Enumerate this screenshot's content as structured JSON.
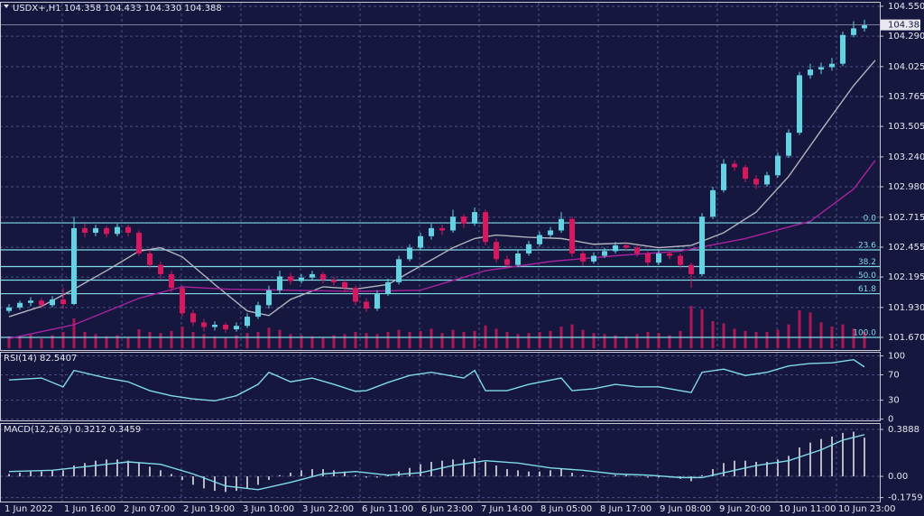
{
  "chart_data": [
    {
      "type": "candlestick",
      "title": "USDX+,H1 104.358 104.433 104.330 104.388",
      "ylim": [
        101.56,
        104.581
      ],
      "yticks": [
        {
          "value": 104.55,
          "label": "104.550"
        },
        {
          "value": 104.29,
          "label": "104.290"
        },
        104.025,
        103.765,
        103.505,
        {
          "value": 103.24,
          "label": "103.240"
        },
        {
          "value": 102.98,
          "label": "102.980"
        },
        102.715,
        102.455,
        102.195,
        {
          "value": 101.93,
          "label": "101.930"
        },
        {
          "value": 101.67,
          "label": "101.670"
        }
      ],
      "grid": true,
      "up_color": "#62d3e3",
      "down_color": "#d9175f",
      "x_labels": [
        "1 Jun 2022",
        "1 Jun 16:00",
        "2 Jun 07:00",
        "2 Jun 19:00",
        "3 Jun 10:00",
        "3 Jun 22:00",
        "6 Jun 11:00",
        "6 Jun 23:00",
        "7 Jun 14:00",
        "8 Jun 05:00",
        "8 Jun 17:00",
        "9 Jun 08:00",
        "9 Jun 20:00",
        "10 Jun 11:00",
        "10 Jun 23:00"
      ],
      "ohlc": [
        [
          101.9,
          101.96,
          101.88,
          101.93
        ],
        [
          101.93,
          101.99,
          101.91,
          101.97
        ],
        [
          101.97,
          102.02,
          101.94,
          101.99
        ],
        [
          101.99,
          102.01,
          101.92,
          101.95
        ],
        [
          101.95,
          102.03,
          101.93,
          102.0
        ],
        [
          102.0,
          102.1,
          101.92,
          101.96
        ],
        [
          101.96,
          102.72,
          101.95,
          102.62
        ],
        [
          102.62,
          102.66,
          102.54,
          102.58
        ],
        [
          102.58,
          102.65,
          102.55,
          102.62
        ],
        [
          102.62,
          102.64,
          102.54,
          102.57
        ],
        [
          102.57,
          102.66,
          102.55,
          102.63
        ],
        [
          102.63,
          102.65,
          102.55,
          102.58
        ],
        [
          102.58,
          102.6,
          102.38,
          102.4
        ],
        [
          102.4,
          102.43,
          102.27,
          102.3
        ],
        [
          102.3,
          102.33,
          102.18,
          102.22
        ],
        [
          102.22,
          102.25,
          102.06,
          102.1
        ],
        [
          102.1,
          102.12,
          101.85,
          101.88
        ],
        [
          101.88,
          101.91,
          101.77,
          101.8
        ],
        [
          101.8,
          101.83,
          101.72,
          101.76
        ],
        [
          101.76,
          101.81,
          101.73,
          101.78
        ],
        [
          101.78,
          101.8,
          101.71,
          101.74
        ],
        [
          101.74,
          101.8,
          101.72,
          101.77
        ],
        [
          101.77,
          101.88,
          101.75,
          101.85
        ],
        [
          101.85,
          101.98,
          101.83,
          101.95
        ],
        [
          101.95,
          102.12,
          101.92,
          102.08
        ],
        [
          102.08,
          102.25,
          102.05,
          102.2
        ],
        [
          102.2,
          102.23,
          102.13,
          102.16
        ],
        [
          102.16,
          102.22,
          102.14,
          102.19
        ],
        [
          102.19,
          102.25,
          102.17,
          102.22
        ],
        [
          102.22,
          102.24,
          102.14,
          102.17
        ],
        [
          102.17,
          102.2,
          102.12,
          102.15
        ],
        [
          102.15,
          102.17,
          102.06,
          102.1
        ],
        [
          102.1,
          102.12,
          101.95,
          101.98
        ],
        [
          101.98,
          102.01,
          101.89,
          101.92
        ],
        [
          101.92,
          102.08,
          101.9,
          102.05
        ],
        [
          102.05,
          102.18,
          102.03,
          102.15
        ],
        [
          102.15,
          102.38,
          102.13,
          102.35
        ],
        [
          102.35,
          102.48,
          102.33,
          102.45
        ],
        [
          102.45,
          102.58,
          102.43,
          102.55
        ],
        [
          102.55,
          102.66,
          102.52,
          102.62
        ],
        [
          102.62,
          102.65,
          102.56,
          102.6
        ],
        [
          102.6,
          102.78,
          102.58,
          102.72
        ],
        [
          102.72,
          102.74,
          102.62,
          102.66
        ],
        [
          102.66,
          102.8,
          102.64,
          102.76
        ],
        [
          102.76,
          102.78,
          102.47,
          102.5
        ],
        [
          102.5,
          102.53,
          102.32,
          102.35
        ],
        [
          102.35,
          102.38,
          102.27,
          102.3
        ],
        [
          102.3,
          102.43,
          102.28,
          102.4
        ],
        [
          102.4,
          102.51,
          102.38,
          102.48
        ],
        [
          102.48,
          102.59,
          102.46,
          102.56
        ],
        [
          102.56,
          102.63,
          102.53,
          102.6
        ],
        [
          102.6,
          102.76,
          102.58,
          102.7
        ],
        [
          102.7,
          102.72,
          102.37,
          102.4
        ],
        [
          102.4,
          102.43,
          102.29,
          102.33
        ],
        [
          102.33,
          102.41,
          102.31,
          102.38
        ],
        [
          102.38,
          102.45,
          102.36,
          102.42
        ],
        [
          102.42,
          102.5,
          102.4,
          102.47
        ],
        [
          102.47,
          102.49,
          102.42,
          102.45
        ],
        [
          102.45,
          102.47,
          102.37,
          102.4
        ],
        [
          102.4,
          102.42,
          102.29,
          102.32
        ],
        [
          102.32,
          102.43,
          102.3,
          102.4
        ],
        [
          102.4,
          102.42,
          102.35,
          102.38
        ],
        [
          102.38,
          102.4,
          102.27,
          102.3
        ],
        [
          102.3,
          102.32,
          102.1,
          102.22
        ],
        [
          102.22,
          102.75,
          102.2,
          102.72
        ],
        [
          102.72,
          102.98,
          102.7,
          102.95
        ],
        [
          102.95,
          103.22,
          102.93,
          103.18
        ],
        [
          103.18,
          103.21,
          103.12,
          103.15
        ],
        [
          103.15,
          103.17,
          103.02,
          103.05
        ],
        [
          103.05,
          103.08,
          102.96,
          103.0
        ],
        [
          103.0,
          103.11,
          102.98,
          103.08
        ],
        [
          103.08,
          103.28,
          103.06,
          103.25
        ],
        [
          103.25,
          103.48,
          103.23,
          103.45
        ],
        [
          103.45,
          103.98,
          103.43,
          103.95
        ],
        [
          103.95,
          104.05,
          103.92,
          104.0
        ],
        [
          104.0,
          104.06,
          103.96,
          104.02
        ],
        [
          104.02,
          104.1,
          103.99,
          104.05
        ],
        [
          104.05,
          104.33,
          104.03,
          104.3
        ],
        [
          104.3,
          104.42,
          104.28,
          104.358
        ],
        [
          104.358,
          104.433,
          104.33,
          104.388
        ]
      ],
      "lines": [
        {
          "color": "#b4b4be",
          "x": [
            0,
            3,
            6,
            9,
            12,
            14,
            16,
            19,
            22,
            24,
            26,
            29,
            32,
            35,
            38,
            41,
            43,
            45,
            48,
            51,
            54,
            57,
            60,
            63,
            66,
            69,
            72,
            75,
            78,
            80
          ],
          "values": [
            101.85,
            101.94,
            102.09,
            102.25,
            102.42,
            102.45,
            102.37,
            102.13,
            101.9,
            101.86,
            102.0,
            102.11,
            102.09,
            102.13,
            102.29,
            102.45,
            102.53,
            102.56,
            102.54,
            102.53,
            102.48,
            102.49,
            102.45,
            102.47,
            102.58,
            102.76,
            103.07,
            103.47,
            103.86,
            104.08
          ]
        },
        {
          "color": "#a8239e",
          "x": [
            0,
            6,
            12,
            16,
            20,
            26,
            32,
            38,
            44,
            50,
            56,
            62,
            68,
            74,
            78,
            80
          ],
          "values": [
            101.66,
            101.78,
            102.01,
            102.11,
            102.09,
            102.08,
            102.07,
            102.08,
            102.25,
            102.33,
            102.38,
            102.42,
            102.53,
            102.68,
            102.96,
            103.21
          ]
        }
      ],
      "volume": {
        "color": "#c4195c",
        "ylim": [
          0,
          100
        ],
        "values": [
          22,
          20,
          25,
          18,
          24,
          30,
          55,
          30,
          26,
          22,
          24,
          20,
          35,
          30,
          28,
          32,
          40,
          30,
          26,
          22,
          20,
          24,
          28,
          30,
          38,
          34,
          26,
          24,
          22,
          20,
          24,
          26,
          30,
          28,
          26,
          30,
          34,
          30,
          32,
          36,
          28,
          34,
          30,
          32,
          42,
          36,
          30,
          26,
          28,
          30,
          32,
          40,
          44,
          34,
          28,
          26,
          24,
          22,
          26,
          30,
          28,
          24,
          32,
          78,
          72,
          50,
          46,
          36,
          32,
          30,
          30,
          34,
          44,
          70,
          66,
          48,
          40,
          44,
          36,
          30
        ]
      },
      "fibo": {
        "color": "#7fdbe6",
        "levels": [
          {
            "ratio": {
              "value": 0,
              "label": "0.0"
            },
            "price": 102.666
          },
          {
            "ratio": 23.6,
            "price": 102.431
          },
          {
            "ratio": 38.2,
            "price": 102.286
          },
          {
            "ratio": {
              "value": 50,
              "label": "50.0"
            },
            "price": 102.168
          },
          {
            "ratio": 61.8,
            "price": 102.05
          },
          {
            "ratio": {
              "value": 100,
              "label": "100.0"
            },
            "price": 101.67
          }
        ]
      }
    },
    {
      "type": "line",
      "title": "RSI(14) 82.5407",
      "ylim": [
        -2,
        105
      ],
      "yticks": [
        100,
        70,
        30,
        0
      ],
      "grid": true,
      "color": "#7fdbe6",
      "x": [
        0,
        3,
        5,
        6,
        9,
        11,
        13,
        15,
        17,
        19,
        21,
        23,
        24,
        26,
        28,
        30,
        32,
        33,
        35,
        37,
        39,
        42,
        43,
        44,
        46,
        48,
        51,
        52,
        54,
        56,
        58,
        60,
        62,
        63,
        64,
        66,
        68,
        70,
        72,
        74,
        76,
        78,
        79
      ],
      "values": [
        62,
        65,
        51,
        77,
        65,
        59,
        45,
        37,
        32,
        29,
        37,
        55,
        74,
        59,
        65,
        55,
        44,
        45,
        58,
        69,
        74,
        65,
        77,
        45,
        45,
        55,
        65,
        45,
        48,
        55,
        51,
        51,
        45,
        42,
        74,
        79,
        69,
        74,
        84,
        88,
        89,
        94,
        82.5407
      ]
    },
    {
      "type": "macd",
      "title": "MACD(12,26,9) 0.3212 0.3459",
      "ylim": [
        -0.209,
        0.434
      ],
      "yticks": [
        0.3888,
        {
          "value": 0,
          "label": "0.00"
        },
        -0.1759
      ],
      "grid": true,
      "histogram": {
        "color": "#b8b8c4",
        "values": [
          0.02,
          0.03,
          0.04,
          0.04,
          0.05,
          0.05,
          0.09,
          0.11,
          0.13,
          0.14,
          0.14,
          0.13,
          0.11,
          0.08,
          0.05,
          0.02,
          -0.03,
          -0.07,
          -0.1,
          -0.12,
          -0.13,
          -0.12,
          -0.1,
          -0.07,
          -0.03,
          0.01,
          0.03,
          0.05,
          0.06,
          0.06,
          0.05,
          0.04,
          0.01,
          -0.01,
          -0.01,
          0.01,
          0.04,
          0.07,
          0.1,
          0.12,
          0.13,
          0.14,
          0.14,
          0.15,
          0.12,
          0.09,
          0.06,
          0.05,
          0.04,
          0.04,
          0.05,
          0.06,
          0.03,
          0.01,
          0.0,
          0.0,
          0.01,
          0.01,
          0.0,
          -0.01,
          -0.01,
          -0.01,
          -0.02,
          -0.04,
          0.01,
          0.06,
          0.11,
          0.13,
          0.13,
          0.12,
          0.12,
          0.14,
          0.17,
          0.24,
          0.28,
          0.31,
          0.33,
          0.36,
          0.37,
          0.3212
        ]
      },
      "signal": {
        "color": "#7fdbe6",
        "x": [
          0,
          4,
          8,
          11,
          14,
          17,
          20,
          23,
          26,
          29,
          32,
          35,
          38,
          41,
          44,
          47,
          50,
          53,
          56,
          59,
          62,
          64,
          66,
          69,
          72,
          75,
          77,
          79
        ],
        "values": [
          0.04,
          0.05,
          0.09,
          0.12,
          0.1,
          0.02,
          -0.08,
          -0.11,
          -0.05,
          0.02,
          0.04,
          0.01,
          0.03,
          0.09,
          0.13,
          0.11,
          0.07,
          0.05,
          0.02,
          0.01,
          -0.01,
          -0.01,
          0.03,
          0.09,
          0.13,
          0.22,
          0.3,
          0.3459
        ]
      }
    }
  ]
}
